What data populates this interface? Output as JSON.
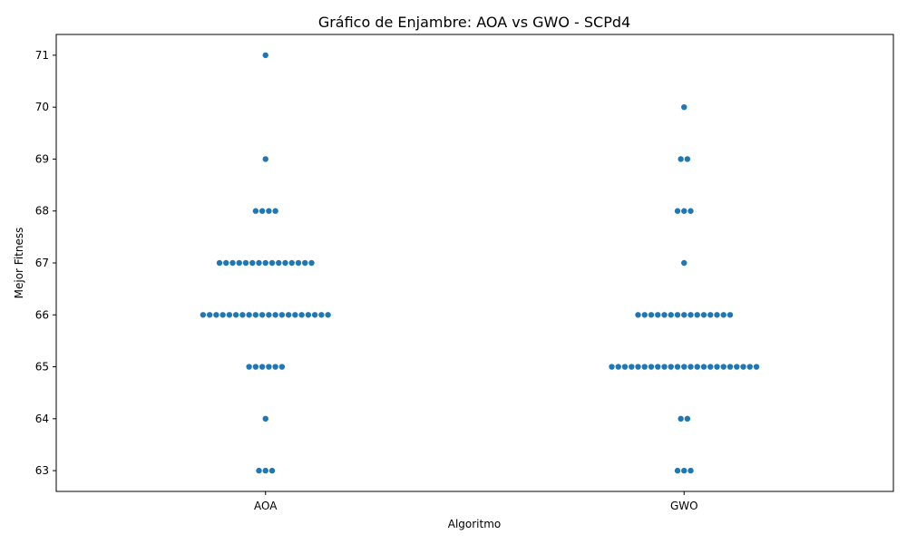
{
  "chart_data": {
    "type": "scatter",
    "subtype": "swarm",
    "title": "Gráfico de Enjambre: AOA vs GWO - SCPd4",
    "xlabel": "Algoritmo",
    "ylabel": "Mejor Fitness",
    "categories": [
      "AOA",
      "GWO"
    ],
    "ylim": [
      62.6,
      71.4
    ],
    "yticks": [
      63,
      64,
      65,
      66,
      67,
      68,
      69,
      70,
      71
    ],
    "grid": false,
    "legend": "none",
    "marker_color": "#1f77b4",
    "series": [
      {
        "category": "AOA",
        "counts": [
          {
            "y": 71,
            "n": 1
          },
          {
            "y": 69,
            "n": 1
          },
          {
            "y": 68,
            "n": 4
          },
          {
            "y": 67,
            "n": 15
          },
          {
            "y": 66,
            "n": 20
          },
          {
            "y": 65,
            "n": 6
          },
          {
            "y": 64,
            "n": 1
          },
          {
            "y": 63,
            "n": 3
          }
        ]
      },
      {
        "category": "GWO",
        "counts": [
          {
            "y": 70,
            "n": 1
          },
          {
            "y": 69,
            "n": 2
          },
          {
            "y": 68,
            "n": 3
          },
          {
            "y": 67,
            "n": 1
          },
          {
            "y": 66,
            "n": 15
          },
          {
            "y": 65,
            "n": 23
          },
          {
            "y": 64,
            "n": 2
          },
          {
            "y": 63,
            "n": 3
          }
        ]
      }
    ]
  }
}
